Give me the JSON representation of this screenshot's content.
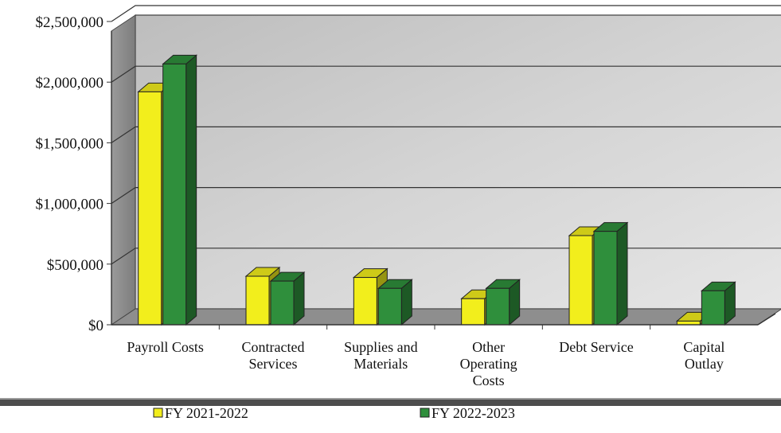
{
  "chart_data": {
    "type": "bar",
    "title": "",
    "xlabel": "",
    "ylabel": "",
    "categories": [
      [
        "Payroll Costs"
      ],
      [
        "Contracted",
        "Services"
      ],
      [
        "Supplies and",
        "Materials"
      ],
      [
        "Other",
        "Operating",
        "Costs"
      ],
      [
        "Debt Service"
      ],
      [
        "Capital",
        "Outlay"
      ]
    ],
    "series": [
      {
        "name": "FY 2021-2022",
        "color": "#f2ee1c",
        "values": [
          1920000,
          400000,
          390000,
          215000,
          735000,
          30000
        ]
      },
      {
        "name": "FY 2022-2023",
        "color": "#2f8f3c",
        "values": [
          2150000,
          360000,
          300000,
          300000,
          770000,
          280000
        ]
      }
    ],
    "ylim": [
      0,
      2500000
    ],
    "yticks": [
      {
        "value": 0,
        "label": "$0"
      },
      {
        "value": 500000,
        "label": "$500,000"
      },
      {
        "value": 1000000,
        "label": "$1,000,000"
      },
      {
        "value": 1500000,
        "label": "$1,500,000"
      },
      {
        "value": 2000000,
        "label": "$2,000,000"
      },
      {
        "value": 2500000,
        "label": "$2,500,000"
      }
    ],
    "grid": true,
    "style": "3d",
    "legend_position": "bottom"
  }
}
